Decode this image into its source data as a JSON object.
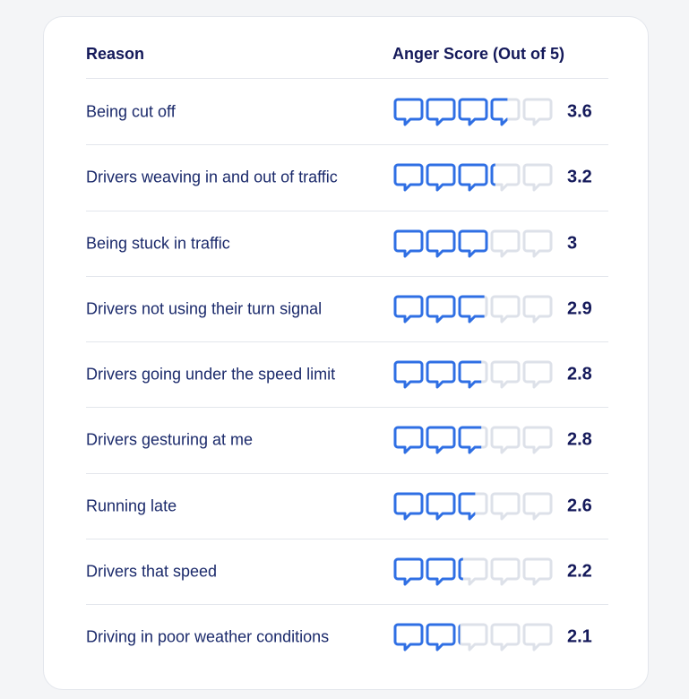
{
  "chart_data": {
    "type": "table",
    "columns": [
      "Reason",
      "Anger Score (Out of 5)"
    ],
    "max_score": 5,
    "rows": [
      {
        "reason": "Being cut off",
        "score": 3.6,
        "label": "3.6"
      },
      {
        "reason": "Drivers weaving in and out of traffic",
        "score": 3.2,
        "label": "3.2"
      },
      {
        "reason": "Being stuck in traffic",
        "score": 3,
        "label": "3"
      },
      {
        "reason": "Drivers not using their turn signal",
        "score": 2.9,
        "label": "2.9"
      },
      {
        "reason": "Drivers going under the speed limit",
        "score": 2.8,
        "label": "2.8"
      },
      {
        "reason": "Drivers gesturing at me",
        "score": 2.8,
        "label": "2.8"
      },
      {
        "reason": "Running late",
        "score": 2.6,
        "label": "2.6"
      },
      {
        "reason": "Drivers that speed",
        "score": 2.2,
        "label": "2.2"
      },
      {
        "reason": "Driving in poor weather conditions",
        "score": 2.1,
        "label": "2.1"
      }
    ]
  },
  "colors": {
    "icon_filled": "#2f6fe4",
    "icon_empty": "#dde1e9",
    "text_dark": "#14195a",
    "text_body": "#1b2a6b"
  },
  "icon_name": "speech-bubble-icon"
}
